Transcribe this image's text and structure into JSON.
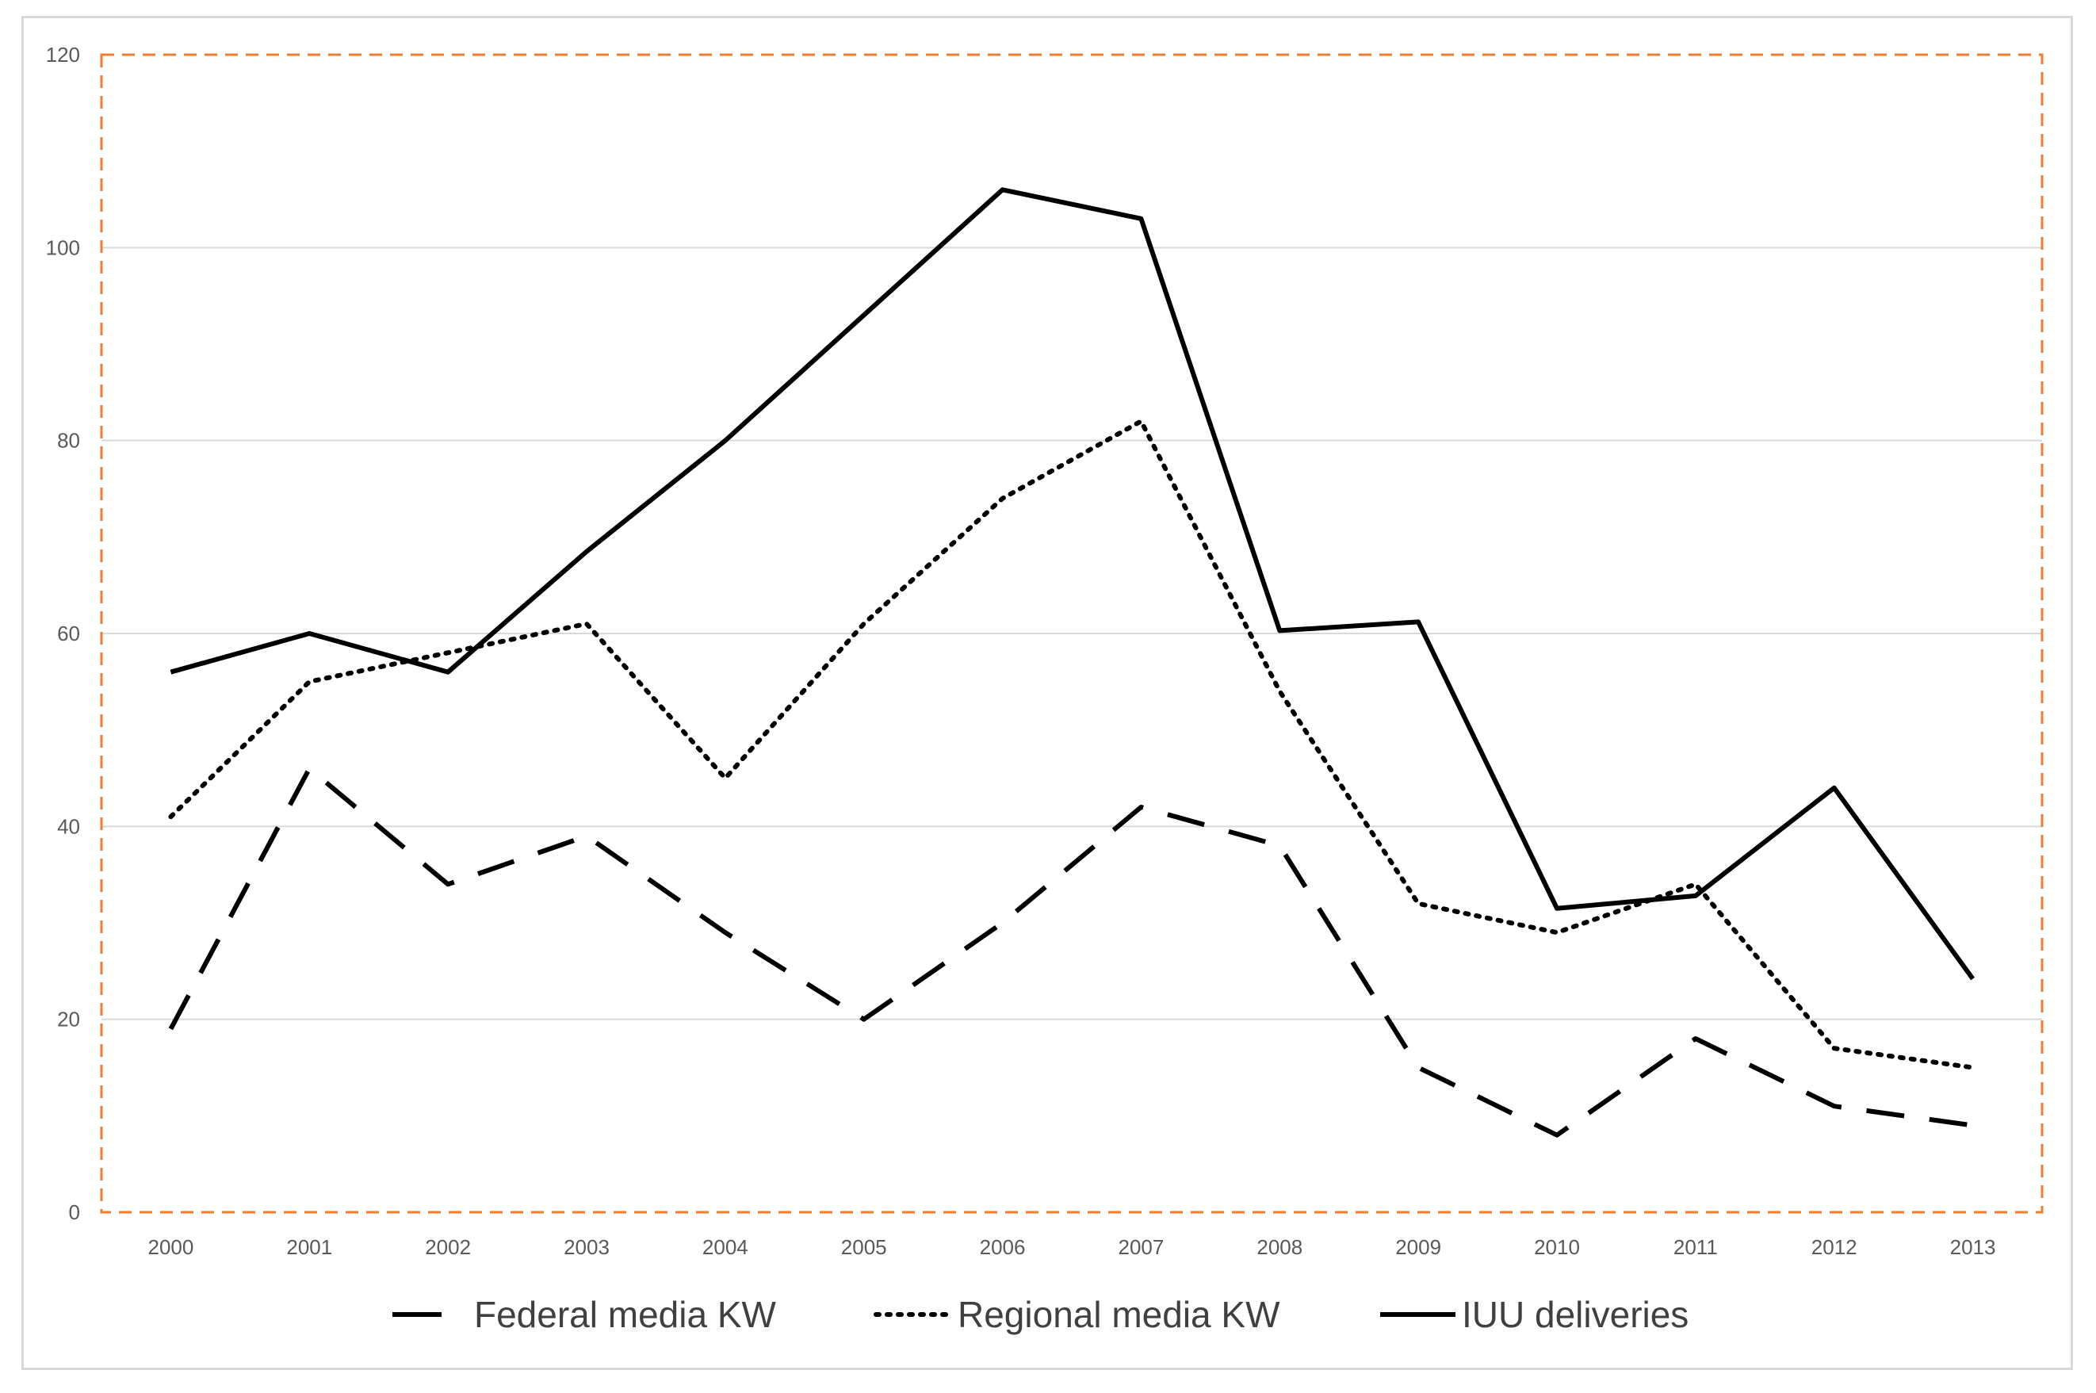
{
  "chart_data": {
    "type": "line",
    "title": "",
    "xlabel": "",
    "ylabel": "",
    "categories": [
      "2000",
      "2001",
      "2002",
      "2003",
      "2004",
      "2005",
      "2006",
      "2007",
      "2008",
      "2009",
      "2010",
      "2011",
      "2012",
      "2013"
    ],
    "ylim": [
      0,
      120
    ],
    "yticks": [
      0,
      20,
      40,
      60,
      80,
      100,
      120
    ],
    "grid": true,
    "legend_position": "bottom",
    "series": [
      {
        "name": "Federal media KW",
        "style": "dashed",
        "color": "#000000",
        "values": [
          19,
          46,
          34,
          39,
          29,
          20,
          30,
          42,
          38,
          15,
          8,
          18,
          11,
          9
        ]
      },
      {
        "name": "Regional media KW",
        "style": "dotted",
        "color": "#000000",
        "values": [
          41,
          55,
          58,
          61,
          45,
          61,
          74,
          82,
          54,
          32,
          29,
          34,
          17,
          15
        ]
      },
      {
        "name": "IUU deliveries",
        "style": "solid",
        "color": "#000000",
        "values": [
          56,
          60,
          56,
          68.5,
          80,
          93,
          106,
          103,
          60.3,
          61.2,
          31.5,
          32.8,
          44,
          24.2
        ]
      }
    ],
    "colors": {
      "plot_border": "#ED7D31",
      "grid": "#d9d9d9",
      "tick_text": "#595959"
    }
  }
}
